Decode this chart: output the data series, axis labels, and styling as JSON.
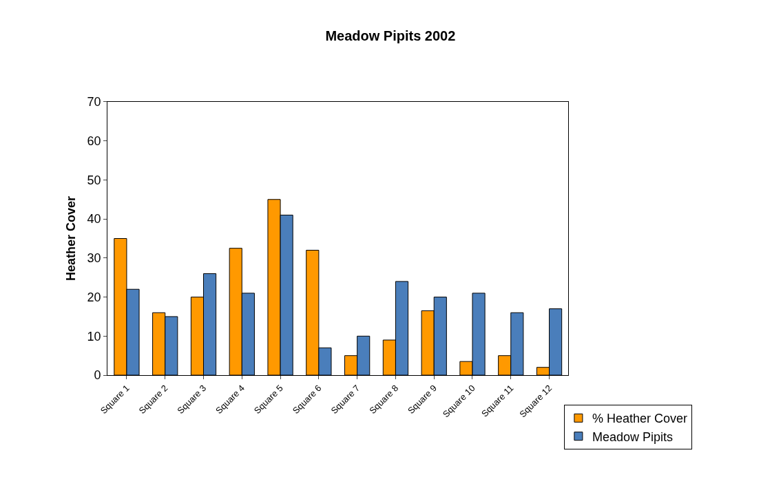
{
  "chart_data": {
    "type": "bar",
    "title": "Meadow Pipits 2002",
    "ylabel": "Heather Cover",
    "categories": [
      "Square 1",
      "Square 2",
      "Square 3",
      "Square 4",
      "Square 5",
      "Square 6",
      "Square 7",
      "Square 8",
      "Square 9",
      "Square 10",
      "Square 11",
      "Square 12"
    ],
    "series": [
      {
        "name": "% Heather Cover",
        "color": "#ff9900",
        "values": [
          35,
          16,
          20,
          32.5,
          45,
          32,
          5,
          9,
          16.5,
          3.5,
          5,
          2
        ]
      },
      {
        "name": "Meadow Pipits",
        "color": "#4a7ebb",
        "values": [
          22,
          15,
          26,
          21,
          41,
          7,
          10,
          24,
          20,
          21,
          16,
          17
        ]
      }
    ],
    "ylim": [
      0,
      70
    ],
    "yticks": [
      0,
      10,
      20,
      30,
      40,
      50,
      60,
      70
    ],
    "grid": false,
    "legend": "bottom right"
  }
}
